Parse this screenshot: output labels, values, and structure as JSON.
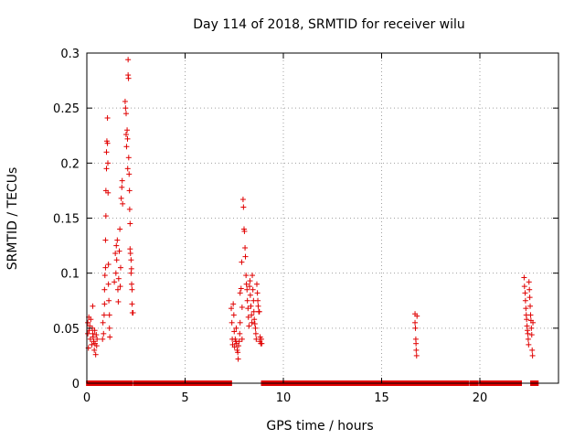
{
  "chart_data": {
    "type": "scatter",
    "title": "Day 114 of 2018, SRMTID for receiver wilu",
    "xlabel": "GPS time / hours",
    "ylabel": "SRMTID / TECUs",
    "xlim": [
      0,
      24
    ],
    "ylim": [
      0,
      0.3
    ],
    "x_ticks": [
      0,
      5,
      10,
      15,
      20
    ],
    "x_tick_labels": [
      "0",
      "5",
      "10",
      "15",
      "20"
    ],
    "y_ticks": [
      0,
      0.05,
      0.1,
      0.15,
      0.2,
      0.25,
      0.3
    ],
    "y_tick_labels": [
      "0",
      "0.05",
      "0.1",
      "0.15",
      "0.2",
      "0.25",
      "0.3"
    ],
    "grid": true,
    "marker": "plus",
    "color": "#e00000",
    "series": [
      {
        "points": [
          [
            0.05,
            0.055
          ],
          [
            0.05,
            0.045
          ],
          [
            0.08,
            0.032
          ],
          [
            0.1,
            0.06
          ],
          [
            0.12,
            0.048
          ],
          [
            0.15,
            0.052
          ],
          [
            0.18,
            0.04
          ],
          [
            0.2,
            0.058
          ],
          [
            0.25,
            0.035
          ],
          [
            0.28,
            0.05
          ],
          [
            0.3,
            0.045
          ],
          [
            0.3,
            0.07
          ],
          [
            0.32,
            0.042
          ],
          [
            0.35,
            0.038
          ],
          [
            0.38,
            0.03
          ],
          [
            0.4,
            0.048
          ],
          [
            0.42,
            0.036
          ],
          [
            0.45,
            0.026
          ],
          [
            0.48,
            0.044
          ],
          [
            0.5,
            0.034
          ],
          [
            0.52,
            0.04
          ],
          [
            0.8,
            0.04
          ],
          [
            0.82,
            0.055
          ],
          [
            0.85,
            0.045
          ],
          [
            0.88,
            0.062
          ],
          [
            0.9,
            0.072
          ],
          [
            0.9,
            0.085
          ],
          [
            0.92,
            0.098
          ],
          [
            0.95,
            0.105
          ],
          [
            0.95,
            0.13
          ],
          [
            0.97,
            0.152
          ],
          [
            0.97,
            0.175
          ],
          [
            1.0,
            0.195
          ],
          [
            1.0,
            0.21
          ],
          [
            1.02,
            0.22
          ],
          [
            1.05,
            0.241
          ],
          [
            1.05,
            0.218
          ],
          [
            1.07,
            0.2
          ],
          [
            1.08,
            0.173
          ],
          [
            1.1,
            0.108
          ],
          [
            1.1,
            0.09
          ],
          [
            1.12,
            0.075
          ],
          [
            1.15,
            0.062
          ],
          [
            1.15,
            0.05
          ],
          [
            1.17,
            0.042
          ],
          [
            1.4,
            0.092
          ],
          [
            1.45,
            0.118
          ],
          [
            1.48,
            0.1
          ],
          [
            1.5,
            0.125
          ],
          [
            1.52,
            0.112
          ],
          [
            1.55,
            0.13
          ],
          [
            1.58,
            0.085
          ],
          [
            1.6,
            0.074
          ],
          [
            1.62,
            0.095
          ],
          [
            1.65,
            0.12
          ],
          [
            1.68,
            0.14
          ],
          [
            1.7,
            0.088
          ],
          [
            1.72,
            0.105
          ],
          [
            1.75,
            0.168
          ],
          [
            1.78,
            0.178
          ],
          [
            1.8,
            0.184
          ],
          [
            1.82,
            0.163
          ],
          [
            1.95,
            0.256
          ],
          [
            1.97,
            0.25
          ],
          [
            2.0,
            0.245
          ],
          [
            2.0,
            0.226
          ],
          [
            2.02,
            0.215
          ],
          [
            2.05,
            0.23
          ],
          [
            2.07,
            0.222
          ],
          [
            2.08,
            0.195
          ],
          [
            2.1,
            0.28
          ],
          [
            2.1,
            0.294
          ],
          [
            2.12,
            0.277
          ],
          [
            2.13,
            0.205
          ],
          [
            2.15,
            0.19
          ],
          [
            2.17,
            0.175
          ],
          [
            2.18,
            0.158
          ],
          [
            2.2,
            0.145
          ],
          [
            2.2,
            0.122
          ],
          [
            2.22,
            0.118
          ],
          [
            2.25,
            0.112
          ],
          [
            2.25,
            0.1
          ],
          [
            2.27,
            0.104
          ],
          [
            2.28,
            0.09
          ],
          [
            2.3,
            0.085
          ],
          [
            2.3,
            0.072
          ],
          [
            2.32,
            0.064
          ],
          [
            2.35,
            0.064
          ],
          [
            7.35,
            0.068
          ],
          [
            7.38,
            0.055
          ],
          [
            7.4,
            0.04
          ],
          [
            7.42,
            0.035
          ],
          [
            7.45,
            0.072
          ],
          [
            7.48,
            0.062
          ],
          [
            7.5,
            0.047
          ],
          [
            7.52,
            0.033
          ],
          [
            7.55,
            0.04
          ],
          [
            7.58,
            0.038
          ],
          [
            7.6,
            0.05
          ],
          [
            7.62,
            0.036
          ],
          [
            7.65,
            0.03
          ],
          [
            7.68,
            0.028
          ],
          [
            7.7,
            0.022
          ],
          [
            7.72,
            0.034
          ],
          [
            7.75,
            0.038
          ],
          [
            7.78,
            0.045
          ],
          [
            7.8,
            0.055
          ],
          [
            7.8,
            0.082
          ],
          [
            7.85,
            0.086
          ],
          [
            7.88,
            0.11
          ],
          [
            7.9,
            0.069
          ],
          [
            7.9,
            0.04
          ],
          [
            7.95,
            0.167
          ],
          [
            7.97,
            0.16
          ],
          [
            8.0,
            0.14
          ],
          [
            8.02,
            0.138
          ],
          [
            8.05,
            0.123
          ],
          [
            8.07,
            0.115
          ],
          [
            8.1,
            0.098
          ],
          [
            8.12,
            0.09
          ],
          [
            8.15,
            0.085
          ],
          [
            8.17,
            0.075
          ],
          [
            8.2,
            0.068
          ],
          [
            8.22,
            0.06
          ],
          [
            8.25,
            0.052
          ],
          [
            8.28,
            0.088
          ],
          [
            8.3,
            0.093
          ],
          [
            8.32,
            0.08
          ],
          [
            8.35,
            0.07
          ],
          [
            8.38,
            0.062
          ],
          [
            8.4,
            0.055
          ],
          [
            8.42,
            0.098
          ],
          [
            8.45,
            0.085
          ],
          [
            8.48,
            0.075
          ],
          [
            8.5,
            0.065
          ],
          [
            8.52,
            0.058
          ],
          [
            8.55,
            0.054
          ],
          [
            8.58,
            0.05
          ],
          [
            8.6,
            0.045
          ],
          [
            8.62,
            0.04
          ],
          [
            8.65,
            0.09
          ],
          [
            8.68,
            0.082
          ],
          [
            8.7,
            0.075
          ],
          [
            8.72,
            0.07
          ],
          [
            8.75,
            0.065
          ],
          [
            8.78,
            0.065
          ],
          [
            8.8,
            0.038
          ],
          [
            8.82,
            0.042
          ],
          [
            8.85,
            0.036
          ],
          [
            8.88,
            0.04
          ],
          [
            8.9,
            0.036
          ],
          [
            16.7,
            0.063
          ],
          [
            16.7,
            0.055
          ],
          [
            16.72,
            0.05
          ],
          [
            16.74,
            0.04
          ],
          [
            16.75,
            0.036
          ],
          [
            16.76,
            0.03
          ],
          [
            16.78,
            0.025
          ],
          [
            16.8,
            0.061
          ],
          [
            22.25,
            0.096
          ],
          [
            22.27,
            0.088
          ],
          [
            22.3,
            0.082
          ],
          [
            22.32,
            0.075
          ],
          [
            22.34,
            0.068
          ],
          [
            22.36,
            0.062
          ],
          [
            22.38,
            0.058
          ],
          [
            22.4,
            0.052
          ],
          [
            22.42,
            0.048
          ],
          [
            22.44,
            0.045
          ],
          [
            22.46,
            0.04
          ],
          [
            22.48,
            0.035
          ],
          [
            22.5,
            0.092
          ],
          [
            22.52,
            0.085
          ],
          [
            22.54,
            0.078
          ],
          [
            22.56,
            0.07
          ],
          [
            22.58,
            0.062
          ],
          [
            22.6,
            0.057
          ],
          [
            22.62,
            0.05
          ],
          [
            22.64,
            0.044
          ],
          [
            22.66,
            0.03
          ],
          [
            22.68,
            0.025
          ],
          [
            22.7,
            0.055
          ]
        ],
        "zero_ranges": [
          [
            0.1,
            0.25
          ],
          [
            0.45,
            0.55
          ],
          [
            0.6,
            0.8
          ],
          [
            1.0,
            1.25
          ],
          [
            1.3,
            1.85
          ],
          [
            2.0,
            2.2
          ],
          [
            2.5,
            7.25
          ],
          [
            9.0,
            14.9
          ],
          [
            15.1,
            15.3
          ],
          [
            15.5,
            19.3
          ],
          [
            19.6,
            19.8
          ],
          [
            20.1,
            22.0
          ],
          [
            22.7,
            22.85
          ]
        ]
      }
    ]
  }
}
